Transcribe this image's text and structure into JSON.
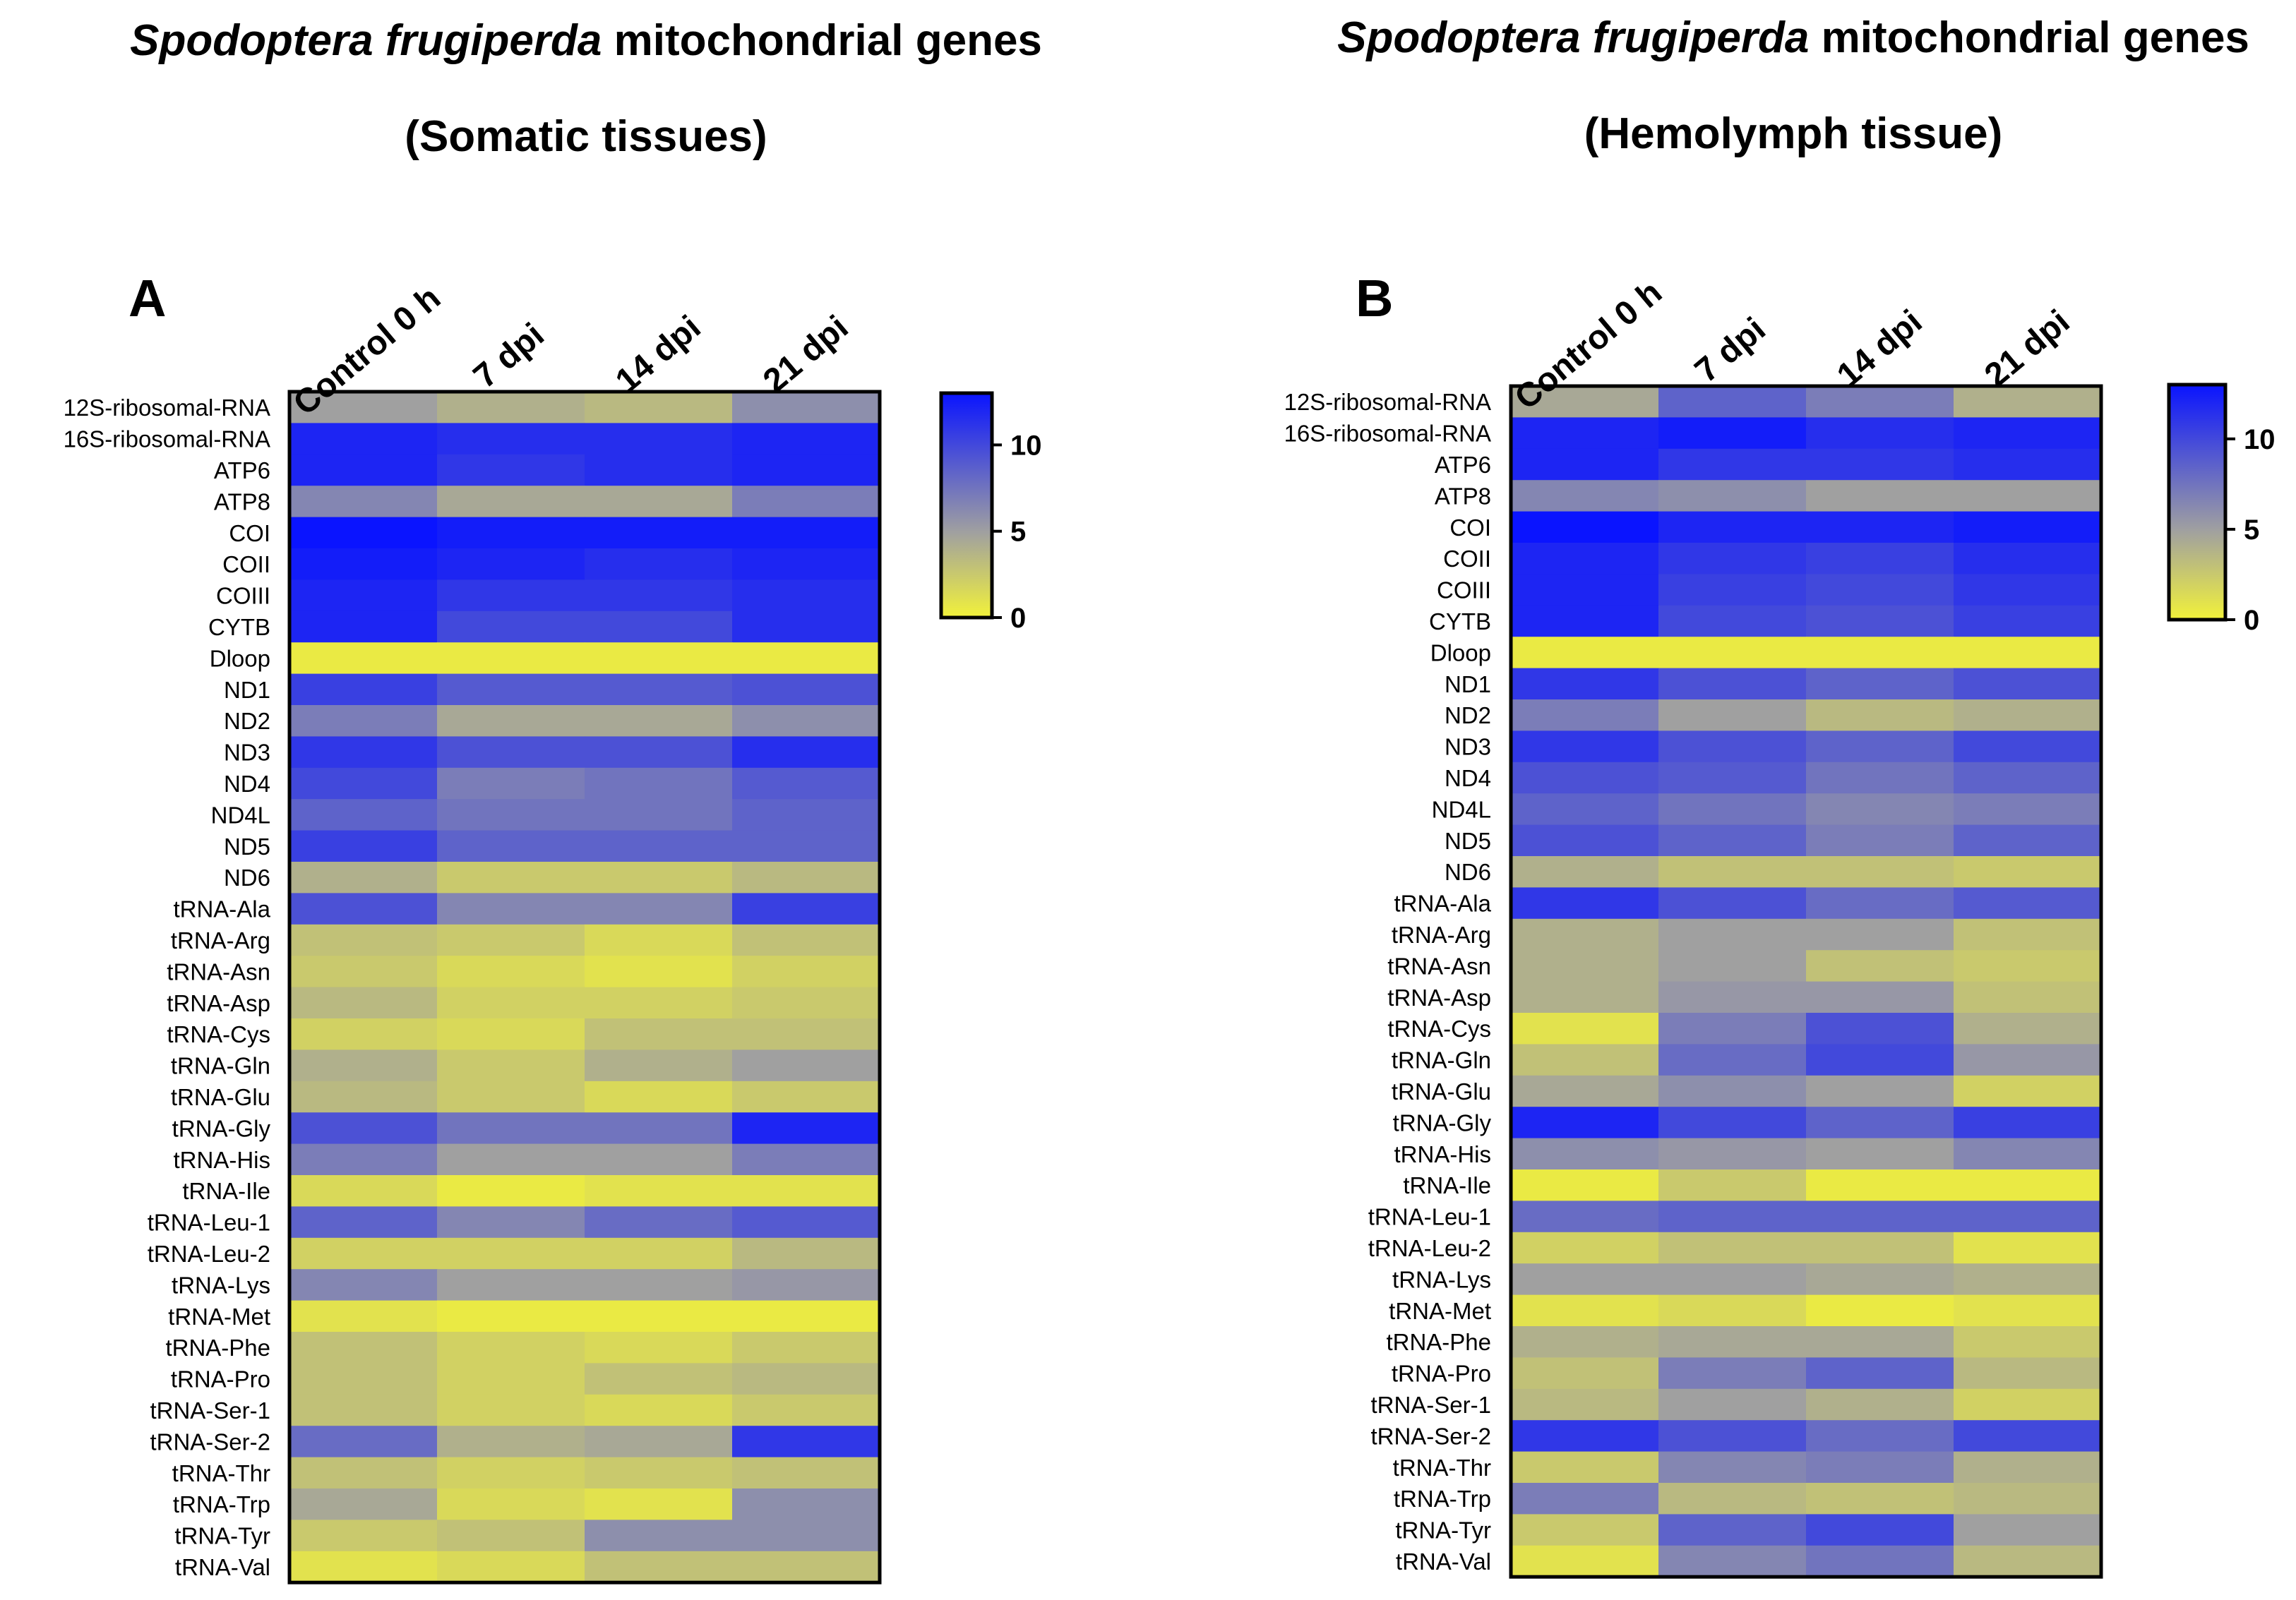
{
  "colors": {
    "low": "#f2f23a",
    "mid": "#a0a0a0",
    "high": "#0a14ff",
    "border": "#000000",
    "text": "#000000"
  },
  "panels": [
    {
      "letter": "A",
      "title_italic": "Spodoptera frugiperda",
      "title_rest": " mitochondrial genes",
      "subtitle": "(Somatic tissues)"
    },
    {
      "letter": "B",
      "title_italic": "Spodoptera frugiperda",
      "title_rest": " mitochondrial genes",
      "subtitle": "(Hemolymph tissue)"
    }
  ],
  "chart_data": [
    {
      "type": "heatmap",
      "title": "Spodoptera frugiperda mitochondrial genes (Somatic tissues)",
      "columns": [
        "Control 0 h",
        "7 dpi",
        "14 dpi",
        "21 dpi"
      ],
      "rows": [
        "12S-ribosomal-RNA",
        "16S-ribosomal-RNA",
        "ATP6",
        "ATP8",
        "COI",
        "COII",
        "COIII",
        "CYTB",
        "Dloop",
        "ND1",
        "ND2",
        "ND3",
        "ND4",
        "ND4L",
        "ND5",
        "ND6",
        "tRNA-Ala",
        "tRNA-Arg",
        "tRNA-Asn",
        "tRNA-Asp",
        "tRNA-Cys",
        "tRNA-Gln",
        "tRNA-Glu",
        "tRNA-Gly",
        "tRNA-His",
        "tRNA-Ile",
        "tRNA-Leu-1",
        "tRNA-Leu-2",
        "tRNA-Lys",
        "tRNA-Met",
        "tRNA-Phe",
        "tRNA-Pro",
        "tRNA-Ser-1",
        "tRNA-Ser-2",
        "tRNA-Thr",
        "tRNA-Trp",
        "tRNA-Tyr",
        "tRNA-Val"
      ],
      "values": [
        [
          5,
          4,
          3.5,
          6
        ],
        [
          12,
          11.5,
          11.5,
          12
        ],
        [
          12,
          11,
          11.5,
          12
        ],
        [
          6.5,
          4.5,
          4.5,
          7
        ],
        [
          13,
          12.5,
          12.5,
          12.5
        ],
        [
          12.5,
          12,
          11.5,
          12
        ],
        [
          12,
          11,
          11,
          11.5
        ],
        [
          12,
          10,
          10,
          11.5
        ],
        [
          0.5,
          0.5,
          0.5,
          0.5
        ],
        [
          10.5,
          9,
          9,
          9.5
        ],
        [
          7,
          4.5,
          4.5,
          6
        ],
        [
          11,
          9.5,
          9.5,
          11.5
        ],
        [
          10,
          7,
          7.5,
          9
        ],
        [
          8.5,
          7.5,
          7.5,
          8.5
        ],
        [
          10.5,
          8.5,
          8.5,
          8.5
        ],
        [
          4,
          2.5,
          2.5,
          3.5
        ],
        [
          9.5,
          6.5,
          6.5,
          10.5
        ],
        [
          3,
          2.5,
          1.5,
          3
        ],
        [
          2.5,
          1.5,
          1,
          2
        ],
        [
          3.5,
          2,
          2,
          2.5
        ],
        [
          2,
          1.5,
          3,
          3
        ],
        [
          4,
          2.5,
          4,
          5
        ],
        [
          3.5,
          2.5,
          1.5,
          2.5
        ],
        [
          9.5,
          7.5,
          7.5,
          12
        ],
        [
          7,
          5,
          5,
          7
        ],
        [
          1.5,
          0.5,
          1,
          1
        ],
        [
          8.5,
          6.5,
          8,
          9
        ],
        [
          2,
          2,
          2,
          3.5
        ],
        [
          6.5,
          5,
          5,
          5.5
        ],
        [
          1,
          0.5,
          0.5,
          0.5
        ],
        [
          3,
          2,
          1.5,
          2.5
        ],
        [
          3,
          2,
          3,
          3.5
        ],
        [
          3,
          2,
          1.5,
          2.5
        ],
        [
          8,
          4,
          4.5,
          11
        ],
        [
          3,
          2,
          2.5,
          3
        ],
        [
          4.5,
          1.5,
          1,
          6
        ],
        [
          2.5,
          3,
          6,
          6
        ],
        [
          1,
          1.5,
          3,
          3
        ]
      ],
      "colorbar": {
        "min": 0,
        "max": 13,
        "ticks": [
          0,
          5,
          10
        ]
      }
    },
    {
      "type": "heatmap",
      "title": "Spodoptera frugiperda mitochondrial genes (Hemolymph tissue)",
      "columns": [
        "Control 0 h",
        "7 dpi",
        "14 dpi",
        "21 dpi"
      ],
      "rows": [
        "12S-ribosomal-RNA",
        "16S-ribosomal-RNA",
        "ATP6",
        "ATP8",
        "COI",
        "COII",
        "COIII",
        "CYTB",
        "Dloop",
        "ND1",
        "ND2",
        "ND3",
        "ND4",
        "ND4L",
        "ND5",
        "ND6",
        "tRNA-Ala",
        "tRNA-Arg",
        "tRNA-Asn",
        "tRNA-Asp",
        "tRNA-Cys",
        "tRNA-Gln",
        "tRNA-Glu",
        "tRNA-Gly",
        "tRNA-His",
        "tRNA-Ile",
        "tRNA-Leu-1",
        "tRNA-Leu-2",
        "tRNA-Lys",
        "tRNA-Met",
        "tRNA-Phe",
        "tRNA-Pro",
        "tRNA-Ser-1",
        "tRNA-Ser-2",
        "tRNA-Thr",
        "tRNA-Trp",
        "tRNA-Tyr",
        "tRNA-Val"
      ],
      "values": [
        [
          4.5,
          8.5,
          7,
          4
        ],
        [
          12,
          12.5,
          11.5,
          12
        ],
        [
          12,
          11,
          11,
          11.5
        ],
        [
          6.5,
          6,
          5,
          5
        ],
        [
          13,
          12,
          12,
          12.5
        ],
        [
          12,
          11,
          10.5,
          11.5
        ],
        [
          12,
          10.5,
          10,
          11
        ],
        [
          12,
          10,
          9.5,
          10.5
        ],
        [
          0.5,
          0.5,
          0.5,
          0.5
        ],
        [
          11,
          9.5,
          8.5,
          9.5
        ],
        [
          7,
          5,
          3.5,
          4
        ],
        [
          11,
          9.5,
          8.5,
          10
        ],
        [
          9.5,
          9,
          7.5,
          8.5
        ],
        [
          8.5,
          7.5,
          6.5,
          7
        ],
        [
          9.5,
          8.5,
          7,
          8.5
        ],
        [
          4,
          3,
          3,
          2.5
        ],
        [
          11,
          9.5,
          8,
          9
        ],
        [
          4,
          5,
          5,
          3
        ],
        [
          4,
          5,
          3,
          2.5
        ],
        [
          4,
          5.5,
          5.5,
          3
        ],
        [
          1,
          7,
          9.5,
          4
        ],
        [
          3,
          8,
          10,
          5.5
        ],
        [
          4.5,
          6,
          5,
          2
        ],
        [
          12,
          10,
          8.5,
          10.5
        ],
        [
          6,
          5.5,
          5,
          6.5
        ],
        [
          0.5,
          2.5,
          0.5,
          0.5
        ],
        [
          8,
          8.5,
          8.5,
          8.5
        ],
        [
          2,
          3,
          3,
          1
        ],
        [
          5,
          5,
          4.5,
          4
        ],
        [
          1,
          1.5,
          0.5,
          1
        ],
        [
          4,
          4.5,
          4.5,
          2.5
        ],
        [
          3,
          7,
          8.5,
          3.5
        ],
        [
          3.5,
          5,
          4,
          2
        ],
        [
          11,
          9.5,
          8,
          10
        ],
        [
          2.5,
          6.5,
          7,
          4
        ],
        [
          7,
          3.5,
          3,
          3.5
        ],
        [
          2.5,
          8.5,
          10,
          5
        ],
        [
          1,
          6.5,
          7.5,
          3.5
        ]
      ],
      "colorbar": {
        "min": 0,
        "max": 13,
        "ticks": [
          0,
          5,
          10
        ]
      }
    }
  ]
}
